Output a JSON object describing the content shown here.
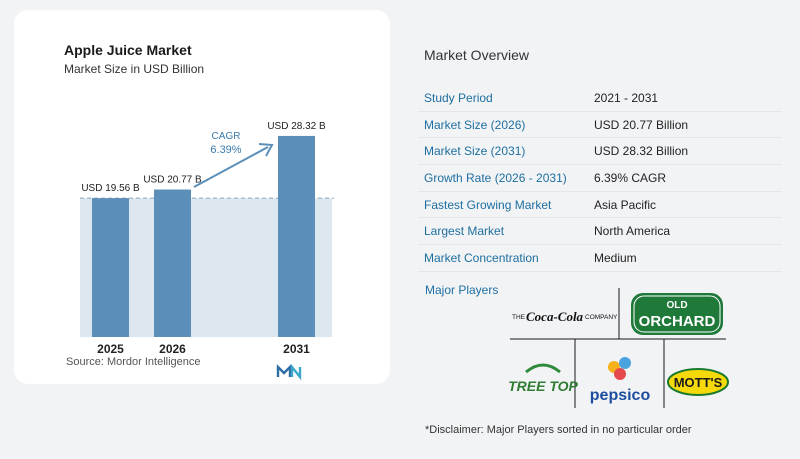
{
  "chart_card": {
    "title": "Apple Juice Market",
    "subtitle": "Market Size in USD Billion",
    "source": "Source:  Mordor Intelligence",
    "logo": "mordor-intelligence-logo"
  },
  "chart_data": {
    "type": "bar",
    "categories": [
      "2025",
      "2026",
      "2031"
    ],
    "values": [
      19.56,
      20.77,
      28.32
    ],
    "value_labels": [
      "USD 19.56 B",
      "USD 20.77 B",
      "USD 28.32 B"
    ],
    "title": "Apple Juice Market",
    "subtitle": "Market Size in USD Billion",
    "annotation": {
      "label": "CAGR",
      "value": "6.39%"
    },
    "colors": {
      "bar": "#5b8fba",
      "band": "#dde7f0",
      "dashed_line": "#8aa9c0",
      "accent": "#3a7bab"
    }
  },
  "overview": {
    "title": "Market Overview",
    "rows": [
      {
        "label": "Study Period",
        "value": "2021 - 2031"
      },
      {
        "label": "Market Size (2026)",
        "value": "USD 20.77 Billion"
      },
      {
        "label": "Market Size (2031)",
        "value": "USD 28.32 Billion"
      },
      {
        "label": "Growth Rate (2026 - 2031)",
        "value": "6.39% CAGR"
      },
      {
        "label": "Fastest Growing Market",
        "value": "Asia Pacific"
      },
      {
        "label": "Largest Market",
        "value": "North America"
      },
      {
        "label": "Market Concentration",
        "value": "Medium"
      }
    ]
  },
  "players": {
    "title": "Major Players",
    "logos": [
      {
        "name": "coca-cola-company-logo",
        "text_the": "THE",
        "text_brand": "Coca-Cola",
        "text_company": "COMPANY"
      },
      {
        "name": "old-orchard-logo",
        "text_top": "OLD",
        "text_bottom": "ORCHARD"
      },
      {
        "name": "tree-top-logo",
        "text": "TREE TOP"
      },
      {
        "name": "pepsico-logo",
        "text": "pepsico"
      },
      {
        "name": "motts-logo",
        "text": "MOTT'S"
      }
    ]
  },
  "disclaimer": "*Disclaimer: Major Players sorted in no particular order"
}
